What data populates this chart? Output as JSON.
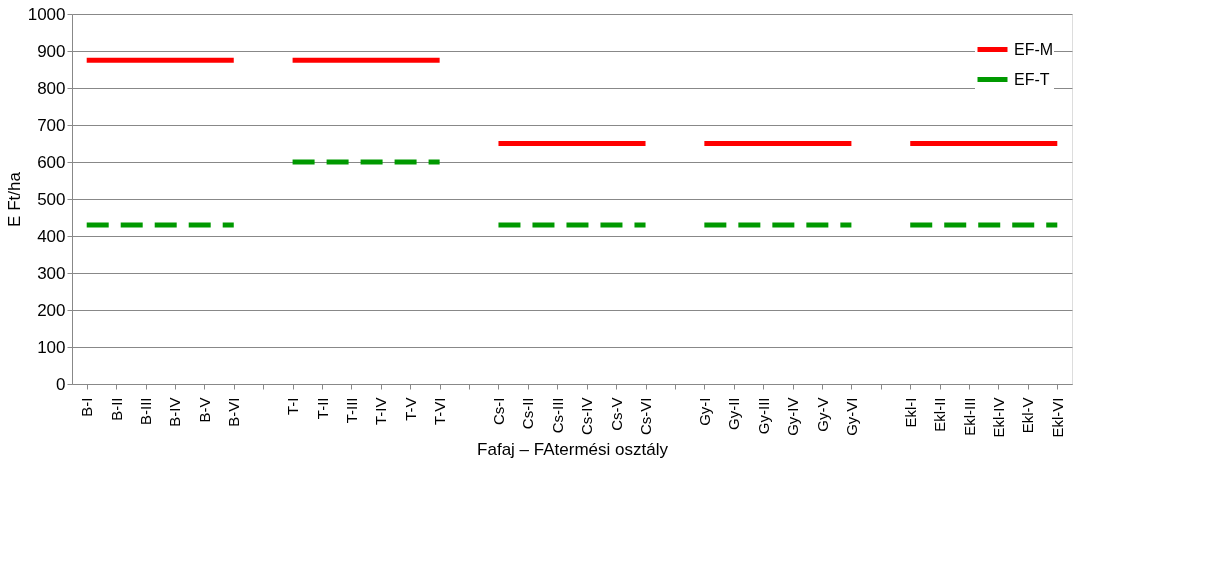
{
  "chart_data": {
    "type": "line",
    "categories": [
      "B-I",
      "B-II",
      "B-III",
      "B-IV",
      "B-V",
      "B-VI",
      null,
      "T-I",
      "T-II",
      "T-III",
      "T-IV",
      "T-V",
      "T-VI",
      null,
      "Cs-I",
      "Cs-II",
      "Cs-III",
      "Cs-IV",
      "Cs-V",
      "Cs-VI",
      null,
      "Gy-I",
      "Gy-II",
      "Gy-III",
      "Gy-IV",
      "Gy-V",
      "Gy-VI",
      null,
      "Ekl-I",
      "Ekl-II",
      "Ekl-III",
      "Ekl-IV",
      "Ekl-V",
      "Ekl-VI"
    ],
    "series": [
      {
        "name": "EF-M",
        "color": "#ff0000",
        "line_style": "solid",
        "values": [
          875,
          875,
          875,
          875,
          875,
          875,
          null,
          875,
          875,
          875,
          875,
          875,
          875,
          null,
          650,
          650,
          650,
          650,
          650,
          650,
          null,
          650,
          650,
          650,
          650,
          650,
          650,
          null,
          650,
          650,
          650,
          650,
          650,
          650
        ]
      },
      {
        "name": "EF-T",
        "color": "#009900",
        "line_style": "dashed",
        "values": [
          430,
          430,
          430,
          430,
          430,
          430,
          null,
          600,
          600,
          600,
          600,
          600,
          600,
          null,
          430,
          430,
          430,
          430,
          430,
          430,
          null,
          430,
          430,
          430,
          430,
          430,
          430,
          null,
          430,
          430,
          430,
          430,
          430,
          430
        ]
      }
    ],
    "xlabel": "Fafaj – FAtermési osztály",
    "ylabel": "E Ft/ha",
    "ylim": [
      0,
      1000
    ],
    "yticks": [
      0,
      100,
      200,
      300,
      400,
      500,
      600,
      700,
      800,
      900,
      1000
    ],
    "grid": "y",
    "legend": "top right",
    "marker": "none"
  }
}
